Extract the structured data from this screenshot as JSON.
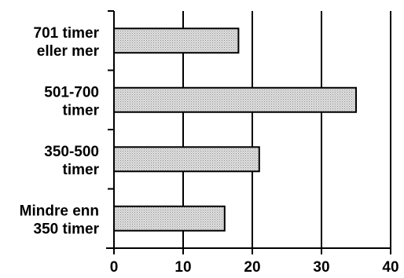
{
  "chart_data": {
    "type": "bar",
    "orientation": "horizontal",
    "categories": [
      [
        "701 timer",
        "eller mer"
      ],
      [
        "501-700",
        "timer"
      ],
      [
        "350-500",
        "timer"
      ],
      [
        "Mindre enn",
        "350 timer"
      ]
    ],
    "values": [
      18,
      35,
      21,
      16
    ],
    "xlim": [
      0,
      40
    ],
    "xticks": [
      "0",
      "10",
      "20",
      "30",
      "40"
    ],
    "grid": "vertical lines at major ticks",
    "bar_fill": "#d4d4d4",
    "bar_stroke": "#000000"
  }
}
